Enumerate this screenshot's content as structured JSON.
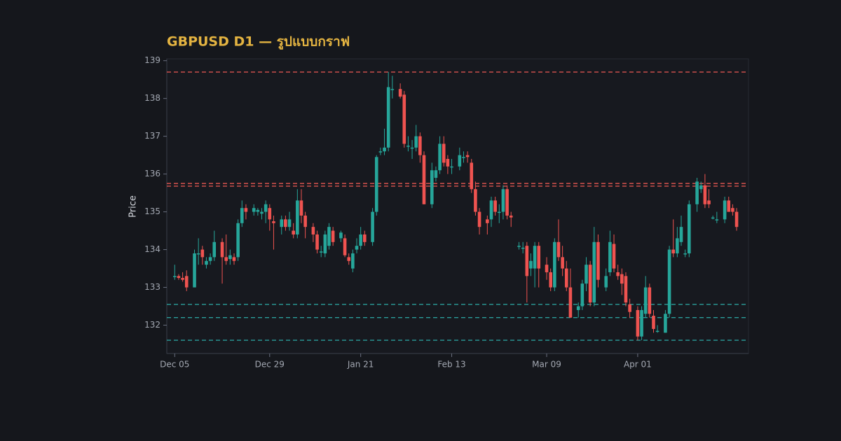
{
  "chart_data": {
    "type": "candlestick",
    "title": "GBPUSD D1 — รูปแบบกราฟ",
    "y_label": "Price",
    "x": [
      "Dec 05",
      "Dec 06",
      "Dec 07",
      "Dec 08",
      "Dec 10",
      "Dec 11",
      "Dec 12",
      "Dec 13",
      "Dec 14",
      "Dec 15",
      "Dec 17",
      "Dec 18",
      "Dec 19",
      "Dec 20",
      "Dec 21",
      "Dec 22",
      "Dec 23",
      "Dec 25",
      "Dec 26",
      "Dec 27",
      "Dec 28",
      "Dec 29",
      "Dec 30",
      "Jan 01",
      "Jan 02",
      "Jan 03",
      "Jan 04",
      "Jan 05",
      "Jan 06",
      "Jan 07",
      "Jan 09",
      "Jan 10",
      "Jan 11",
      "Jan 12",
      "Jan 13",
      "Jan 14",
      "Jan 16",
      "Jan 17",
      "Jan 18",
      "Jan 19",
      "Jan 20",
      "Jan 21",
      "Jan 22",
      "Jan 24",
      "Jan 25",
      "Jan 26",
      "Jan 27",
      "Jan 28",
      "Jan 29",
      "Jan 31",
      "Feb 01",
      "Feb 02",
      "Feb 03",
      "Feb 04",
      "Feb 05",
      "Feb 06",
      "Feb 08",
      "Feb 09",
      "Feb 10",
      "Feb 11",
      "Feb 12",
      "Feb 13",
      "Feb 15",
      "Feb 16",
      "Feb 17",
      "Feb 18",
      "Feb 19",
      "Feb 20",
      "Feb 22",
      "Feb 23",
      "Feb 24",
      "Feb 25",
      "Feb 26",
      "Feb 27",
      "Feb 28",
      "Mar 02",
      "Mar 03",
      "Mar 04",
      "Mar 05",
      "Mar 06",
      "Mar 07",
      "Mar 09",
      "Mar 10",
      "Mar 11",
      "Mar 12",
      "Mar 13",
      "Mar 14",
      "Mar 15",
      "Mar 17",
      "Mar 18",
      "Mar 19",
      "Mar 20",
      "Mar 21",
      "Mar 22",
      "Mar 24",
      "Mar 25",
      "Mar 26",
      "Mar 27",
      "Mar 28",
      "Mar 29",
      "Mar 30",
      "Apr 01",
      "Apr 02",
      "Apr 03",
      "Apr 04",
      "Apr 05",
      "Apr 06",
      "Apr 08",
      "Apr 09",
      "Apr 10",
      "Apr 11",
      "Apr 12",
      "Apr 13",
      "Apr 14",
      "Apr 16",
      "Apr 17",
      "Apr 18",
      "Apr 19",
      "Apr 20",
      "Apr 21",
      "Apr 23",
      "Apr 24",
      "Apr 25",
      "Apr 26"
    ],
    "open": [
      133.3,
      133.3,
      133.25,
      133.3,
      133.0,
      133.9,
      134.0,
      133.6,
      133.7,
      133.8,
      134.2,
      133.8,
      133.75,
      133.8,
      133.8,
      134.7,
      135.1,
      135.0,
      135.0,
      134.95,
      135.0,
      135.1,
      134.75,
      134.6,
      134.8,
      134.6,
      134.5,
      134.4,
      135.3,
      134.9,
      134.6,
      134.4,
      133.95,
      133.9,
      134.1,
      134.5,
      134.3,
      134.3,
      133.8,
      133.5,
      134.0,
      134.1,
      134.4,
      134.2,
      135.0,
      136.6,
      136.6,
      136.7,
      138.25,
      138.25,
      138.1,
      136.75,
      136.7,
      136.7,
      137.0,
      136.5,
      135.2,
      135.9,
      136.1,
      136.8,
      136.4,
      136.2,
      136.2,
      136.45,
      136.5,
      136.3,
      135.6,
      135.0,
      134.8,
      134.8,
      135.3,
      135.0,
      135.0,
      135.6,
      134.9,
      134.1,
      134.05,
      134.1,
      133.5,
      133.5,
      134.1,
      133.6,
      133.4,
      133.0,
      134.2,
      133.8,
      133.5,
      133.0,
      132.4,
      132.5,
      133.1,
      133.6,
      132.6,
      134.2,
      133.0,
      133.4,
      134.15,
      133.4,
      133.35,
      133.3,
      132.55,
      132.4,
      131.7,
      132.3,
      133.0,
      132.25,
      131.85,
      131.8,
      132.3,
      134.0,
      133.9,
      134.2,
      133.9,
      133.9,
      135.2,
      135.6,
      135.7,
      135.3,
      134.85,
      134.8,
      134.8,
      135.3,
      135.1,
      135.0
    ],
    "high": [
      133.6,
      133.35,
      133.4,
      133.45,
      134.0,
      134.3,
      134.1,
      133.8,
      133.9,
      134.5,
      134.3,
      134.4,
      134.0,
      133.9,
      134.8,
      135.3,
      135.2,
      135.2,
      135.1,
      135.1,
      135.3,
      135.2,
      134.9,
      134.9,
      134.9,
      135.0,
      134.7,
      135.6,
      135.6,
      135.0,
      134.7,
      134.5,
      134.1,
      134.5,
      134.7,
      134.6,
      134.5,
      134.4,
      133.9,
      134.0,
      134.3,
      134.6,
      134.5,
      135.1,
      136.5,
      136.7,
      137.2,
      138.7,
      138.6,
      138.4,
      138.2,
      137.0,
      136.9,
      137.3,
      137.1,
      136.6,
      136.3,
      136.2,
      137.0,
      137.0,
      136.5,
      136.4,
      136.7,
      136.6,
      136.6,
      136.4,
      135.8,
      135.1,
      134.9,
      135.4,
      135.4,
      135.2,
      135.7,
      135.7,
      135.0,
      134.2,
      134.2,
      134.2,
      133.9,
      134.2,
      134.2,
      133.8,
      133.5,
      134.3,
      134.8,
      134.1,
      133.7,
      133.5,
      132.6,
      133.2,
      133.8,
      133.7,
      134.6,
      134.4,
      133.5,
      134.5,
      134.4,
      133.6,
      133.5,
      133.4,
      132.7,
      132.5,
      132.5,
      133.3,
      133.1,
      132.4,
      132.0,
      132.4,
      134.1,
      134.8,
      134.6,
      134.9,
      134.0,
      135.3,
      135.9,
      135.8,
      136.0,
      135.6,
      134.9,
      135.0,
      135.4,
      135.4,
      135.2,
      135.1
    ],
    "low": [
      133.2,
      133.2,
      133.15,
      132.9,
      133.0,
      133.6,
      133.6,
      133.5,
      133.6,
      133.7,
      133.1,
      133.6,
      133.6,
      133.6,
      133.7,
      134.6,
      134.8,
      134.9,
      134.9,
      134.8,
      134.7,
      134.5,
      134.0,
      134.4,
      134.5,
      134.5,
      134.3,
      134.3,
      134.7,
      134.3,
      134.2,
      133.9,
      133.8,
      133.8,
      134.0,
      134.1,
      134.2,
      133.8,
      133.6,
      133.4,
      133.9,
      134.0,
      134.1,
      134.1,
      134.9,
      136.5,
      136.5,
      136.6,
      138.0,
      138.0,
      136.7,
      136.6,
      136.4,
      136.6,
      136.3,
      135.2,
      135.1,
      135.8,
      136.0,
      136.2,
      136.0,
      136.0,
      136.1,
      136.3,
      136.3,
      135.5,
      134.9,
      134.4,
      134.4,
      134.6,
      134.9,
      134.7,
      134.8,
      134.8,
      134.6,
      134.0,
      133.9,
      132.6,
      133.3,
      133.0,
      133.0,
      133.2,
      132.9,
      132.9,
      133.7,
      133.3,
      132.9,
      132.2,
      132.2,
      132.4,
      132.9,
      132.5,
      132.5,
      133.0,
      132.9,
      133.3,
      133.4,
      133.2,
      132.8,
      132.5,
      132.2,
      131.6,
      131.6,
      132.2,
      132.2,
      131.8,
      131.8,
      131.8,
      132.2,
      133.8,
      133.8,
      134.1,
      133.8,
      133.8,
      135.0,
      135.5,
      135.1,
      135.1,
      134.8,
      134.7,
      134.7,
      135.0,
      134.9,
      134.5
    ],
    "close": [
      133.3,
      133.25,
      133.2,
      133.0,
      133.9,
      133.9,
      133.8,
      133.7,
      133.8,
      134.2,
      133.8,
      133.7,
      133.85,
      133.7,
      134.7,
      135.1,
      135.0,
      135.1,
      135.05,
      135.0,
      135.2,
      134.8,
      134.7,
      134.8,
      134.6,
      134.8,
      134.4,
      135.3,
      134.9,
      134.6,
      134.4,
      134.0,
      133.95,
      134.4,
      134.6,
      134.2,
      134.45,
      133.85,
      133.7,
      133.9,
      134.1,
      134.4,
      134.2,
      135.0,
      136.45,
      136.6,
      136.7,
      138.3,
      138.25,
      138.05,
      136.8,
      136.75,
      136.7,
      137.0,
      136.5,
      135.2,
      136.1,
      136.1,
      136.8,
      136.3,
      136.2,
      136.2,
      136.5,
      136.45,
      136.45,
      135.6,
      135.0,
      134.6,
      134.7,
      135.3,
      135.0,
      135.0,
      135.6,
      134.9,
      134.85,
      134.1,
      134.05,
      133.3,
      133.7,
      134.1,
      133.5,
      133.4,
      133.0,
      134.2,
      133.8,
      133.5,
      133.0,
      132.2,
      132.5,
      133.1,
      133.6,
      132.6,
      134.2,
      133.2,
      133.3,
      134.2,
      133.5,
      133.3,
      133.1,
      132.6,
      132.35,
      131.7,
      132.4,
      133.0,
      132.3,
      131.9,
      131.85,
      132.3,
      134.0,
      133.9,
      134.3,
      134.6,
      133.9,
      135.2,
      135.8,
      135.7,
      135.2,
      135.2,
      134.85,
      134.8,
      135.3,
      135.0,
      135.0,
      134.6
    ],
    "up_color": "#26a69a",
    "down_color": "#ef5350",
    "resistance": [
      138.7,
      135.75,
      135.68
    ],
    "resistance_color": "#d9534f",
    "support": [
      132.55,
      132.2,
      131.6
    ],
    "support_color": "#2a9d9a",
    "xlim": [
      "Dec 03",
      "Apr 29"
    ],
    "xticks": [
      "Dec 05",
      "Dec 29",
      "Jan 21",
      "Feb 13",
      "Mar 09",
      "Apr 01"
    ],
    "ylim": [
      131.25,
      139.05
    ],
    "yticks": [
      132,
      133,
      134,
      135,
      136,
      137,
      138,
      139
    ]
  }
}
